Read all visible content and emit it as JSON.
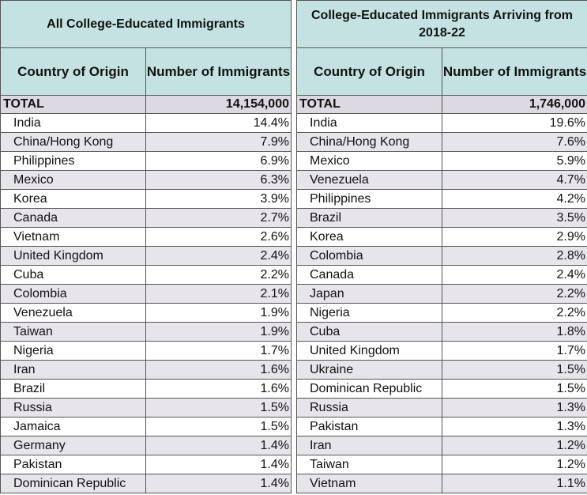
{
  "left": {
    "title": "All College-Educated Immigrants",
    "col_country": "Country of Origin",
    "col_number": "Number of Immigrants",
    "total_label": "TOTAL",
    "total_value": "14,154,000",
    "rows": [
      {
        "country": "India",
        "value": "14.4%"
      },
      {
        "country": "China/Hong Kong",
        "value": "7.9%"
      },
      {
        "country": "Philippines",
        "value": "6.9%"
      },
      {
        "country": "Mexico",
        "value": "6.3%"
      },
      {
        "country": "Korea",
        "value": "3.9%"
      },
      {
        "country": "Canada",
        "value": "2.7%"
      },
      {
        "country": "Vietnam",
        "value": "2.6%"
      },
      {
        "country": "United Kingdom",
        "value": "2.4%"
      },
      {
        "country": "Cuba",
        "value": "2.2%"
      },
      {
        "country": "Colombia",
        "value": "2.1%"
      },
      {
        "country": "Venezuela",
        "value": "1.9%"
      },
      {
        "country": "Taiwan",
        "value": "1.9%"
      },
      {
        "country": "Nigeria",
        "value": "1.7%"
      },
      {
        "country": "Iran",
        "value": "1.6%"
      },
      {
        "country": "Brazil",
        "value": "1.6%"
      },
      {
        "country": "Russia",
        "value": "1.5%"
      },
      {
        "country": "Jamaica",
        "value": "1.5%"
      },
      {
        "country": "Germany",
        "value": "1.4%"
      },
      {
        "country": "Pakistan",
        "value": "1.4%"
      },
      {
        "country": "Dominican Republic",
        "value": "1.4%"
      }
    ]
  },
  "right": {
    "title": "College-Educated Immigrants Arriving from 2018-22",
    "col_country": "Country of Origin",
    "col_number": "Number of Immigrants",
    "total_label": "TOTAL",
    "total_value": "1,746,000",
    "rows": [
      {
        "country": "India",
        "value": "19.6%"
      },
      {
        "country": "China/Hong Kong",
        "value": "7.6%"
      },
      {
        "country": "Mexico",
        "value": "5.9%"
      },
      {
        "country": "Venezuela",
        "value": "4.7%"
      },
      {
        "country": "Philippines",
        "value": "4.2%"
      },
      {
        "country": "Brazil",
        "value": "3.5%"
      },
      {
        "country": "Korea",
        "value": "2.9%"
      },
      {
        "country": "Colombia",
        "value": "2.8%"
      },
      {
        "country": "Canada",
        "value": "2.4%"
      },
      {
        "country": "Japan",
        "value": "2.2%"
      },
      {
        "country": "Nigeria",
        "value": "2.2%"
      },
      {
        "country": "Cuba",
        "value": "1.8%"
      },
      {
        "country": "United Kingdom",
        "value": "1.7%"
      },
      {
        "country": "Ukraine",
        "value": "1.5%"
      },
      {
        "country": "Dominican Republic",
        "value": "1.5%"
      },
      {
        "country": "Russia",
        "value": "1.3%"
      },
      {
        "country": "Pakistan",
        "value": "1.3%"
      },
      {
        "country": "Iran",
        "value": "1.2%"
      },
      {
        "country": "Taiwan",
        "value": "1.2%"
      },
      {
        "country": "Vietnam",
        "value": "1.1%"
      }
    ]
  }
}
